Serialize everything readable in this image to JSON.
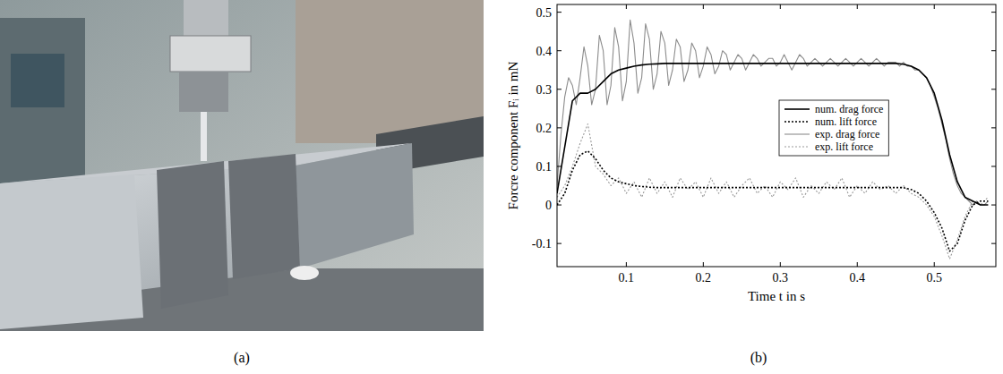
{
  "photo": {
    "caption": "(a)"
  },
  "chart_data": {
    "type": "line",
    "caption": "(b)",
    "x_label": "Time t in s",
    "y_label": "Forcre component Fᵢ in mN",
    "xlim": [
      0.01,
      0.58
    ],
    "ylim": [
      -0.16,
      0.52
    ],
    "xticks": [
      0.1,
      0.2,
      0.3,
      0.4,
      0.5
    ],
    "yticks": [
      -0.1,
      0,
      0.1,
      0.2,
      0.3,
      0.4,
      0.5
    ],
    "grid": false,
    "legend": "center",
    "series": [
      {
        "name": "num. drag force",
        "color": "#000000",
        "line_style": "solid",
        "x": [
          0.01,
          0.02,
          0.03,
          0.04,
          0.05,
          0.06,
          0.07,
          0.08,
          0.09,
          0.1,
          0.11,
          0.12,
          0.13,
          0.14,
          0.15,
          0.16,
          0.17,
          0.18,
          0.19,
          0.2,
          0.21,
          0.22,
          0.23,
          0.24,
          0.25,
          0.26,
          0.27,
          0.28,
          0.29,
          0.3,
          0.31,
          0.32,
          0.33,
          0.34,
          0.35,
          0.36,
          0.37,
          0.38,
          0.39,
          0.4,
          0.41,
          0.42,
          0.43,
          0.44,
          0.45,
          0.46,
          0.47,
          0.48,
          0.49,
          0.5,
          0.51,
          0.52,
          0.53,
          0.54,
          0.55,
          0.56,
          0.57
        ],
        "values": [
          0.03,
          0.15,
          0.27,
          0.29,
          0.29,
          0.3,
          0.32,
          0.34,
          0.35,
          0.355,
          0.36,
          0.363,
          0.365,
          0.366,
          0.367,
          0.367,
          0.367,
          0.367,
          0.367,
          0.367,
          0.367,
          0.367,
          0.367,
          0.367,
          0.367,
          0.367,
          0.367,
          0.367,
          0.367,
          0.367,
          0.367,
          0.367,
          0.367,
          0.367,
          0.367,
          0.367,
          0.367,
          0.367,
          0.367,
          0.367,
          0.367,
          0.367,
          0.367,
          0.367,
          0.367,
          0.365,
          0.36,
          0.35,
          0.33,
          0.29,
          0.22,
          0.13,
          0.06,
          0.02,
          0.01,
          0.0,
          0.0
        ]
      },
      {
        "name": "num. lift force",
        "color": "#000000",
        "line_style": "dotted",
        "x": [
          0.01,
          0.02,
          0.03,
          0.04,
          0.05,
          0.06,
          0.07,
          0.08,
          0.09,
          0.1,
          0.11,
          0.12,
          0.13,
          0.14,
          0.15,
          0.16,
          0.17,
          0.18,
          0.19,
          0.2,
          0.21,
          0.22,
          0.23,
          0.24,
          0.25,
          0.26,
          0.27,
          0.28,
          0.29,
          0.3,
          0.31,
          0.32,
          0.33,
          0.34,
          0.35,
          0.36,
          0.37,
          0.38,
          0.39,
          0.4,
          0.41,
          0.42,
          0.43,
          0.44,
          0.45,
          0.46,
          0.47,
          0.48,
          0.49,
          0.5,
          0.51,
          0.52,
          0.53,
          0.54,
          0.55,
          0.56,
          0.57
        ],
        "values": [
          0.0,
          0.03,
          0.09,
          0.13,
          0.14,
          0.12,
          0.09,
          0.07,
          0.06,
          0.055,
          0.05,
          0.048,
          0.046,
          0.045,
          0.045,
          0.045,
          0.045,
          0.045,
          0.045,
          0.045,
          0.045,
          0.045,
          0.045,
          0.045,
          0.045,
          0.045,
          0.045,
          0.045,
          0.045,
          0.045,
          0.045,
          0.045,
          0.045,
          0.045,
          0.045,
          0.045,
          0.045,
          0.045,
          0.045,
          0.045,
          0.045,
          0.045,
          0.045,
          0.045,
          0.045,
          0.045,
          0.04,
          0.03,
          0.01,
          -0.02,
          -0.06,
          -0.12,
          -0.1,
          -0.04,
          0.0,
          0.01,
          0.01
        ]
      },
      {
        "name": "exp. drag force",
        "color": "#8c8c8c",
        "line_style": "solid",
        "x": [
          0.01,
          0.015,
          0.02,
          0.025,
          0.03,
          0.035,
          0.04,
          0.045,
          0.05,
          0.055,
          0.06,
          0.065,
          0.07,
          0.075,
          0.08,
          0.085,
          0.09,
          0.095,
          0.1,
          0.105,
          0.11,
          0.115,
          0.12,
          0.125,
          0.13,
          0.135,
          0.14,
          0.145,
          0.15,
          0.155,
          0.16,
          0.165,
          0.17,
          0.175,
          0.18,
          0.185,
          0.19,
          0.195,
          0.2,
          0.205,
          0.21,
          0.215,
          0.22,
          0.225,
          0.23,
          0.235,
          0.24,
          0.245,
          0.25,
          0.255,
          0.26,
          0.265,
          0.27,
          0.275,
          0.28,
          0.285,
          0.29,
          0.295,
          0.3,
          0.305,
          0.31,
          0.315,
          0.32,
          0.325,
          0.33,
          0.335,
          0.34,
          0.345,
          0.35,
          0.355,
          0.36,
          0.365,
          0.37,
          0.375,
          0.38,
          0.385,
          0.39,
          0.395,
          0.4,
          0.405,
          0.41,
          0.415,
          0.42,
          0.425,
          0.43,
          0.435,
          0.44,
          0.445,
          0.45,
          0.455,
          0.46,
          0.465,
          0.47,
          0.475,
          0.48,
          0.485,
          0.49,
          0.495,
          0.5,
          0.505,
          0.51,
          0.515,
          0.52,
          0.525,
          0.53,
          0.535,
          0.54,
          0.545,
          0.55,
          0.555,
          0.56,
          0.565,
          0.57
        ],
        "values": [
          0.05,
          0.18,
          0.28,
          0.33,
          0.31,
          0.26,
          0.33,
          0.41,
          0.36,
          0.26,
          0.3,
          0.44,
          0.4,
          0.26,
          0.31,
          0.46,
          0.41,
          0.27,
          0.32,
          0.48,
          0.42,
          0.29,
          0.33,
          0.47,
          0.43,
          0.3,
          0.34,
          0.45,
          0.42,
          0.31,
          0.35,
          0.43,
          0.41,
          0.32,
          0.35,
          0.42,
          0.4,
          0.33,
          0.36,
          0.41,
          0.39,
          0.34,
          0.36,
          0.4,
          0.39,
          0.35,
          0.37,
          0.39,
          0.38,
          0.35,
          0.37,
          0.39,
          0.38,
          0.36,
          0.37,
          0.38,
          0.38,
          0.36,
          0.37,
          0.39,
          0.37,
          0.35,
          0.37,
          0.39,
          0.38,
          0.36,
          0.37,
          0.38,
          0.37,
          0.36,
          0.37,
          0.38,
          0.37,
          0.36,
          0.37,
          0.38,
          0.37,
          0.36,
          0.37,
          0.38,
          0.37,
          0.36,
          0.37,
          0.38,
          0.37,
          0.36,
          0.37,
          0.37,
          0.37,
          0.36,
          0.37,
          0.36,
          0.36,
          0.35,
          0.35,
          0.34,
          0.33,
          0.31,
          0.28,
          0.25,
          0.21,
          0.17,
          0.12,
          0.08,
          0.05,
          0.03,
          0.02,
          0.01,
          0.0,
          0.01,
          0.0,
          0.0,
          0.01
        ]
      },
      {
        "name": "exp. lift force",
        "color": "#999999",
        "line_style": "dotted",
        "x": [
          0.01,
          0.02,
          0.03,
          0.04,
          0.05,
          0.06,
          0.07,
          0.08,
          0.09,
          0.1,
          0.11,
          0.12,
          0.13,
          0.14,
          0.15,
          0.16,
          0.17,
          0.18,
          0.19,
          0.2,
          0.21,
          0.22,
          0.23,
          0.24,
          0.25,
          0.26,
          0.27,
          0.28,
          0.29,
          0.3,
          0.31,
          0.32,
          0.33,
          0.34,
          0.35,
          0.36,
          0.37,
          0.38,
          0.39,
          0.4,
          0.41,
          0.42,
          0.43,
          0.44,
          0.45,
          0.46,
          0.47,
          0.48,
          0.49,
          0.5,
          0.51,
          0.52,
          0.53,
          0.54,
          0.55,
          0.56,
          0.57
        ],
        "values": [
          0.02,
          0.05,
          0.1,
          0.16,
          0.21,
          0.1,
          0.08,
          0.05,
          0.07,
          0.03,
          0.06,
          0.02,
          0.07,
          0.03,
          0.06,
          0.02,
          0.07,
          0.04,
          0.06,
          0.02,
          0.07,
          0.03,
          0.06,
          0.02,
          0.05,
          0.07,
          0.03,
          0.05,
          0.02,
          0.06,
          0.04,
          0.07,
          0.02,
          0.05,
          0.03,
          0.06,
          0.04,
          0.07,
          0.02,
          0.05,
          0.03,
          0.06,
          0.04,
          0.05,
          0.03,
          0.05,
          0.03,
          0.02,
          0.0,
          -0.03,
          -0.08,
          -0.14,
          -0.09,
          -0.03,
          0.01,
          0.0,
          0.02
        ]
      }
    ]
  }
}
